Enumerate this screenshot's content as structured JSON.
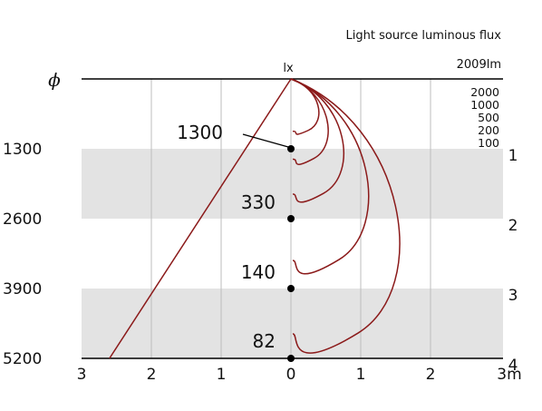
{
  "header": {
    "title": "Light source luminous flux",
    "flux": "2009lm"
  },
  "unit_lx": "lx",
  "phi": "ϕ",
  "chart_data": {
    "type": "isolux-diagram",
    "x_tick_labels": [
      "3",
      "2",
      "1",
      "0",
      "1",
      "2",
      "3m"
    ],
    "x_ticks_m": [
      -3,
      -2,
      -1,
      0,
      1,
      2,
      3
    ],
    "distance_labels_right": [
      "1",
      "2",
      "3",
      "4"
    ],
    "diameter_labels_left": [
      "1300",
      "2600",
      "3900",
      "5200"
    ],
    "depth_m": [
      1,
      2,
      3,
      4
    ],
    "center_lux": [
      "1300",
      "330",
      "140",
      "82"
    ],
    "isolux_legend": [
      "2000",
      "1000",
      "500",
      "200",
      "100"
    ],
    "isolux_curves": [
      {
        "lux": 2000,
        "max_halfwidth_m": 0.45,
        "end_depth_m": 0.75
      },
      {
        "lux": 1000,
        "max_halfwidth_m": 0.6,
        "end_depth_m": 1.15
      },
      {
        "lux": 500,
        "max_halfwidth_m": 0.85,
        "end_depth_m": 1.65
      },
      {
        "lux": 200,
        "max_halfwidth_m": 1.25,
        "end_depth_m": 2.6
      },
      {
        "lux": 100,
        "max_halfwidth_m": 1.75,
        "end_depth_m": 3.65
      }
    ],
    "beam_edge": {
      "from_m": [
        0,
        0
      ],
      "to_m": [
        -2.6,
        4
      ]
    },
    "shaded_bands_m": [
      [
        1,
        2
      ],
      [
        3,
        4
      ]
    ],
    "colors": {
      "curve": "#8b1a1a",
      "band": "#e3e3e3",
      "grid": "#bdbdbd"
    }
  }
}
